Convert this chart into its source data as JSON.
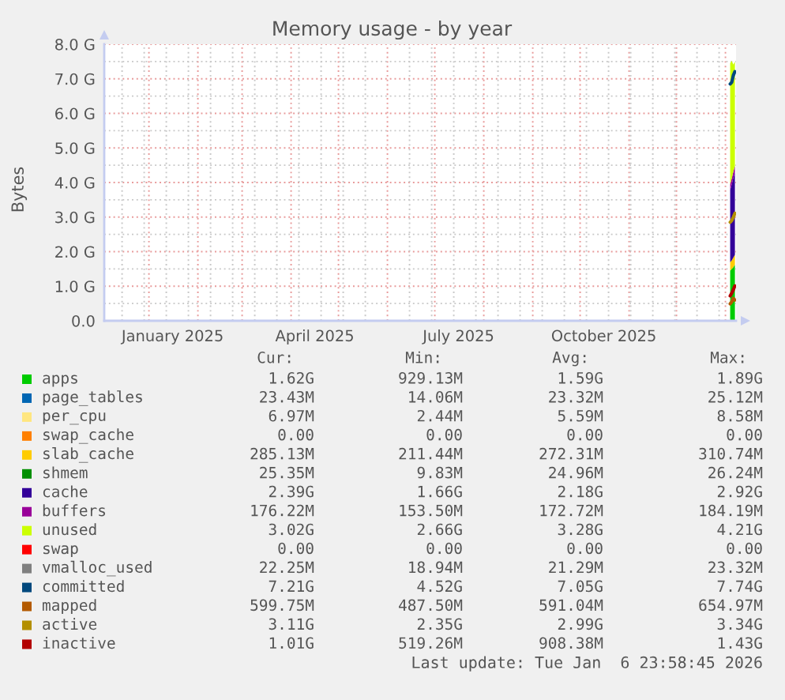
{
  "chart_data": {
    "type": "area",
    "stacked": true,
    "title": "Memory usage - by year",
    "ylabel": "Bytes",
    "x": [
      "2026-01-04",
      "2026-01-05",
      "2026-01-06",
      "2026-01-07"
    ],
    "series": [
      {
        "name": "apps",
        "color": "#00cc00",
        "values": [
          1.45,
          1.5,
          1.55,
          1.62
        ]
      },
      {
        "name": "page_tables",
        "color": "#0066b3",
        "values": [
          null,
          null,
          null,
          null
        ]
      },
      {
        "name": "per_cpu",
        "color": "#ffe680",
        "values": [
          null,
          null,
          null,
          null
        ]
      },
      {
        "name": "swap_cache",
        "color": "#ff8000",
        "values": [
          null,
          null,
          null,
          null
        ]
      },
      {
        "name": "slab_cache",
        "color": "#ffcc00",
        "values": [
          0.24,
          0.25,
          0.28,
          0.29
        ]
      },
      {
        "name": "shmem",
        "color": "#008f00",
        "values": [
          null,
          null,
          null,
          null
        ]
      },
      {
        "name": "cache",
        "color": "#330099",
        "values": [
          2.1,
          2.2,
          2.3,
          2.39
        ]
      },
      {
        "name": "buffers",
        "color": "#990099",
        "values": [
          0.16,
          0.17,
          0.18,
          0.18
        ]
      },
      {
        "name": "unused",
        "color": "#ccff00",
        "values": [
          3.5,
          3.4,
          3.1,
          3.02
        ]
      },
      {
        "name": "swap",
        "color": "#ff0000",
        "values": [
          null,
          null,
          null,
          null
        ]
      },
      {
        "name": "vmalloc_used",
        "color": "#808080",
        "type": "line",
        "values": [
          null,
          null,
          null,
          null
        ]
      },
      {
        "name": "committed",
        "color": "#00487d",
        "type": "line",
        "values": [
          6.85,
          6.9,
          7.1,
          7.21
        ]
      },
      {
        "name": "mapped",
        "color": "#b35a00",
        "type": "line",
        "values": [
          0.49,
          0.55,
          0.65,
          0.6
        ]
      },
      {
        "name": "active",
        "color": "#b38f00",
        "type": "line",
        "values": [
          2.85,
          2.9,
          3.0,
          3.11
        ]
      },
      {
        "name": "inactive",
        "color": "#b30000",
        "type": "line",
        "values": [
          0.72,
          0.8,
          0.9,
          1.01
        ]
      }
    ],
    "xlim": [
      "2024-12-03T17:00",
      "2026-01-07T17:00"
    ],
    "xticks": [
      {
        "value": "2024-12-15",
        "label": null
      },
      {
        "value": "2024-12-29",
        "label": null
      },
      {
        "value": "2025-01-01",
        "label": null
      },
      {
        "value": "2025-01-12",
        "label": null
      },
      {
        "value": "2025-01-16",
        "label": "January 2025"
      },
      {
        "value": "2025-01-26",
        "label": null
      },
      {
        "value": "2025-02-01",
        "label": null
      },
      {
        "value": "2025-02-09",
        "label": null
      },
      {
        "value": "2025-02-23",
        "label": null
      },
      {
        "value": "2025-03-01",
        "label": null
      },
      {
        "value": "2025-03-09",
        "label": null
      },
      {
        "value": "2025-03-23",
        "label": null
      },
      {
        "value": "2025-04-01",
        "label": null
      },
      {
        "value": "2025-04-06",
        "label": null
      },
      {
        "value": "2025-04-16",
        "label": "April 2025"
      },
      {
        "value": "2025-04-20",
        "label": null
      },
      {
        "value": "2025-05-01",
        "label": null
      },
      {
        "value": "2025-05-04",
        "label": null
      },
      {
        "value": "2025-05-18",
        "label": null
      },
      {
        "value": "2025-06-01",
        "label": null
      },
      {
        "value": "2025-06-15",
        "label": null
      },
      {
        "value": "2025-06-29",
        "label": null
      },
      {
        "value": "2025-07-01",
        "label": null
      },
      {
        "value": "2025-07-13",
        "label": null
      },
      {
        "value": "2025-07-16",
        "label": "July 2025"
      },
      {
        "value": "2025-07-27",
        "label": null
      },
      {
        "value": "2025-08-01",
        "label": null
      },
      {
        "value": "2025-08-10",
        "label": null
      },
      {
        "value": "2025-08-24",
        "label": null
      },
      {
        "value": "2025-09-01",
        "label": null
      },
      {
        "value": "2025-09-07",
        "label": null
      },
      {
        "value": "2025-09-21",
        "label": null
      },
      {
        "value": "2025-10-01",
        "label": null
      },
      {
        "value": "2025-10-05",
        "label": null
      },
      {
        "value": "2025-10-16",
        "label": "October 2025"
      },
      {
        "value": "2025-10-19",
        "label": null
      },
      {
        "value": "2025-11-01",
        "label": null
      },
      {
        "value": "2025-11-02",
        "label": null
      },
      {
        "value": "2025-11-16",
        "label": null
      },
      {
        "value": "2025-11-30",
        "label": null
      },
      {
        "value": "2025-12-01",
        "label": null
      },
      {
        "value": "2025-12-14",
        "label": null
      },
      {
        "value": "2025-12-28",
        "label": null
      },
      {
        "value": "2026-01-01",
        "label": null
      }
    ],
    "ylim": [
      0,
      8
    ],
    "yticks": [
      {
        "value": 0,
        "label": "0.0"
      },
      {
        "value": 0.5,
        "label": null
      },
      {
        "value": 1,
        "label": "1.0 G"
      },
      {
        "value": 1.5,
        "label": null
      },
      {
        "value": 2,
        "label": "2.0 G"
      },
      {
        "value": 2.5,
        "label": null
      },
      {
        "value": 3,
        "label": "3.0 G"
      },
      {
        "value": 3.5,
        "label": null
      },
      {
        "value": 4,
        "label": "4.0 G"
      },
      {
        "value": 4.5,
        "label": null
      },
      {
        "value": 5,
        "label": "5.0 G"
      },
      {
        "value": 5.5,
        "label": null
      },
      {
        "value": 6,
        "label": "6.0 G"
      },
      {
        "value": 6.5,
        "label": null
      },
      {
        "value": 7,
        "label": "7.0 G"
      },
      {
        "value": 7.5,
        "label": null
      },
      {
        "value": 8,
        "label": "8.0 G"
      }
    ],
    "grid": true,
    "legend": "bottom",
    "line_style": "solid",
    "marker": "none",
    "annotations": [
      "Cur:",
      "Min:",
      "Avg:",
      "Max:",
      "1.62G",
      "929.13M",
      "1.59G",
      "1.89G",
      "23.43M",
      "14.06M",
      "23.32M",
      "25.12M",
      "6.97M",
      "2.44M",
      "5.59M",
      "8.58M",
      "0.00",
      "0.00",
      "0.00",
      "0.00",
      "285.13M",
      "211.44M",
      "272.31M",
      "310.74M",
      "25.35M",
      "9.83M",
      "24.96M",
      "26.24M",
      "2.39G",
      "1.66G",
      "2.18G",
      "2.92G",
      "176.22M",
      "153.50M",
      "172.72M",
      "184.19M",
      "3.02G",
      "2.66G",
      "3.28G",
      "4.21G",
      "0.00",
      "0.00",
      "0.00",
      "0.00",
      "22.25M",
      "18.94M",
      "21.29M",
      "23.32M",
      "7.21G",
      "4.52G",
      "7.05G",
      "7.74G",
      "599.75M",
      "487.50M",
      "591.04M",
      "654.97M",
      "3.11G",
      "2.35G",
      "2.99G",
      "3.34G",
      "1.01G",
      "519.26M",
      "908.38M",
      "1.43G",
      "Last update: Tue Jan  6 23:58:45 2026"
    ]
  }
}
